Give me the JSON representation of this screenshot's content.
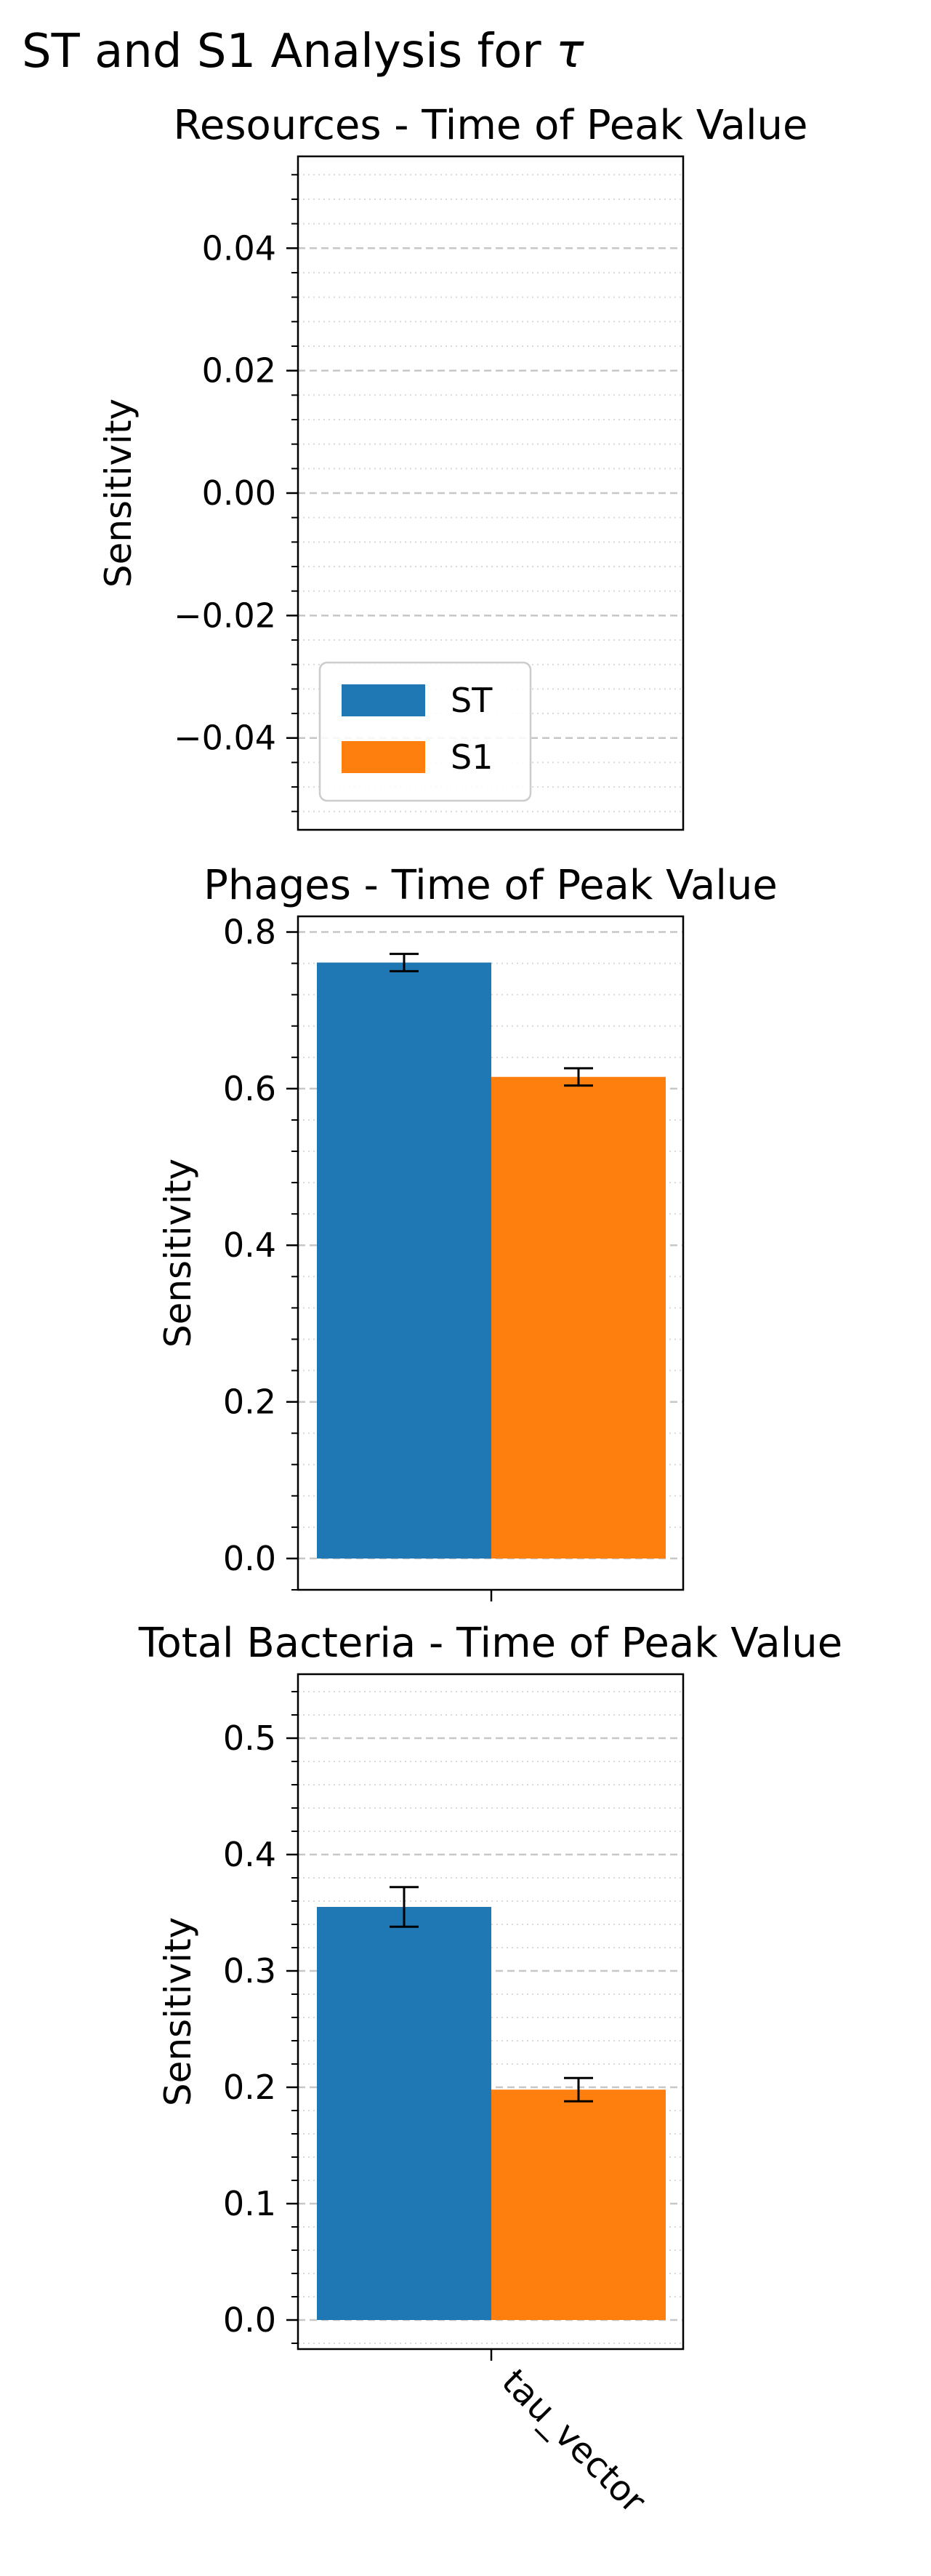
{
  "figure": {
    "suptitle_prefix": "ST and S1 Analysis for ",
    "suptitle_symbol": "τ"
  },
  "colors": {
    "ST": "#1f77b4",
    "S1": "#ff7f0e"
  },
  "chart_data": [
    {
      "type": "bar",
      "title": "Resources - Time of Peak Value",
      "ylabel": "Sensitivity",
      "xlabel": "",
      "categories": [],
      "ylim": [
        -0.055,
        0.055
      ],
      "yticks": [
        -0.04,
        -0.02,
        0.0,
        0.02,
        0.04
      ],
      "ytick_labels": [
        "−0.04",
        "−0.02",
        "0.00",
        "0.02",
        "0.04"
      ],
      "grid": true,
      "legend": {
        "location": "lower-left",
        "entries": [
          "ST",
          "S1"
        ]
      },
      "series": []
    },
    {
      "type": "bar",
      "title": "Phages - Time of Peak Value",
      "ylabel": "Sensitivity",
      "xlabel": "",
      "categories": [
        "tau_vector"
      ],
      "ylim": [
        -0.04,
        0.82
      ],
      "yticks": [
        0.0,
        0.2,
        0.4,
        0.6,
        0.8
      ],
      "ytick_labels": [
        "0.0",
        "0.2",
        "0.4",
        "0.6",
        "0.8"
      ],
      "grid": true,
      "series": [
        {
          "name": "ST",
          "values": [
            0.761
          ],
          "error": [
            0.011
          ]
        },
        {
          "name": "S1",
          "values": [
            0.615
          ],
          "error": [
            0.011
          ]
        }
      ]
    },
    {
      "type": "bar",
      "title": "Total Bacteria - Time of Peak Value",
      "ylabel": "Sensitivity",
      "xlabel": "",
      "categories": [
        "tau_vector"
      ],
      "ylim": [
        -0.025,
        0.555
      ],
      "yticks": [
        0.0,
        0.1,
        0.2,
        0.3,
        0.4,
        0.5
      ],
      "ytick_labels": [
        "0.0",
        "0.1",
        "0.2",
        "0.3",
        "0.4",
        "0.5"
      ],
      "xtick_labels": [
        "tau_vector"
      ],
      "grid": true,
      "series": [
        {
          "name": "ST",
          "values": [
            0.355
          ],
          "error": [
            0.017
          ]
        },
        {
          "name": "S1",
          "values": [
            0.198
          ],
          "error": [
            0.01
          ]
        }
      ]
    }
  ]
}
